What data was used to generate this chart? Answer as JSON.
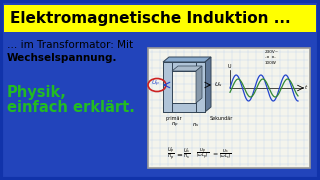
{
  "bg_color": "#2244bb",
  "title_text": "Elektromagnetische Induktion ...",
  "title_bg": "#ffff00",
  "title_color": "#000000",
  "subtitle_line1": "… im Transformator: Mit",
  "subtitle_bold": "Wechselspannung.",
  "subtitle_color": "#000000",
  "bottom_line1": "Physik,",
  "bottom_line2": "einfach erklärt.",
  "bottom_color": "#22bb22",
  "sketch_bg": "#f4f4ec",
  "sketch_border": "#999999",
  "grid_color": "#c8d8f0",
  "wave_blue": "#2244cc",
  "wave_green": "#338833",
  "transformer_face": "#b0c4d8",
  "transformer_top": "#8aaacc",
  "transformer_side": "#607898",
  "transformer_edge": "#334455",
  "ellipse_color": "#cc2222"
}
